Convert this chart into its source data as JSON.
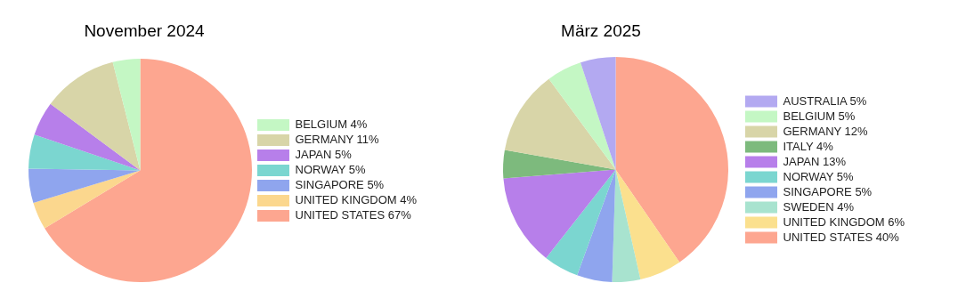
{
  "chart_data": [
    {
      "type": "pie",
      "title": "November 2024",
      "legend": "right",
      "categories": [
        "BELGIUM 4%",
        "GERMANY 11%",
        "JAPAN 5%",
        "NORWAY 5%",
        "SINGAPORE 5%",
        "UNITED KINGDOM 4%",
        "UNITED STATES 67%"
      ],
      "values": [
        4,
        11,
        5,
        5,
        5,
        4,
        67
      ],
      "colors": [
        "#c4f7c4",
        "#d8d5a8",
        "#b77fea",
        "#7bd6d0",
        "#8fa5ee",
        "#fbd78e",
        "#fda690"
      ]
    },
    {
      "type": "pie",
      "title": "März 2025",
      "legend": "right",
      "categories": [
        "AUSTRALIA 5%",
        "BELGIUM 5%",
        "GERMANY 12%",
        "ITALY 4%",
        "JAPAN 13%",
        "NORWAY 5%",
        "SINGAPORE 5%",
        "SWEDEN 4%",
        "UNITED KINGDOM 6%",
        "UNITED STATES 40%"
      ],
      "values": [
        5,
        5,
        12,
        4,
        13,
        5,
        5,
        4,
        6,
        40
      ],
      "colors": [
        "#b3a9f1",
        "#c4f7c4",
        "#d8d5a8",
        "#7dba7d",
        "#b77fea",
        "#7bd6d0",
        "#8fa5ee",
        "#a8e3cf",
        "#fbe08e",
        "#fda690"
      ]
    }
  ]
}
